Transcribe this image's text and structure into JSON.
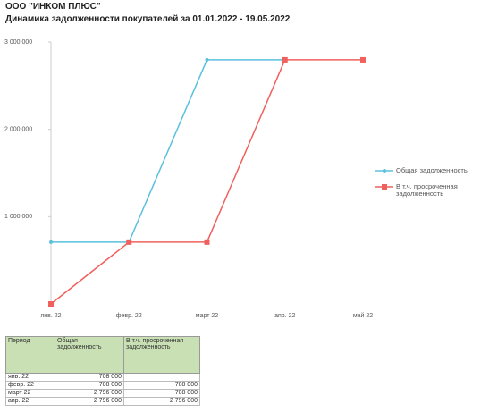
{
  "chart_data": {
    "type": "line",
    "title": "ООО \"ИНКОМ ПЛЮС\"",
    "subtitle": "Динамика задолженности покупателей за 01.01.2022 - 19.05.2022",
    "categories": [
      "янв. 22",
      "февр. 22",
      "март 22",
      "апр. 22",
      "май 22"
    ],
    "series": [
      {
        "name": "Общая задолженность",
        "color": "#5bc0de",
        "values": [
          708000,
          708000,
          2796000,
          2796000,
          null
        ]
      },
      {
        "name": "В т.ч. просроченная задолженность",
        "color": "#f0605d",
        "values": [
          0,
          708000,
          708000,
          2796000,
          2796000
        ]
      }
    ],
    "ylim": [
      0,
      3000000
    ],
    "yticks": [
      {
        "value": 1000000,
        "label": "1 000 000"
      },
      {
        "value": 2000000,
        "label": "2 000 000"
      },
      {
        "value": 3000000,
        "label": "3 000 000"
      }
    ],
    "legend": "right"
  },
  "table": {
    "columns": [
      "Период",
      "Общая задолженность",
      "В т.ч. просроченная задолженность"
    ],
    "rows": [
      [
        "янв. 22",
        "708 000",
        null
      ],
      [
        "февр. 22",
        "708 000",
        "708 000"
      ],
      [
        "март 22",
        "2 796 000",
        "708 000"
      ],
      [
        "апр. 22",
        "2 796 000",
        "2 796 000"
      ]
    ]
  }
}
